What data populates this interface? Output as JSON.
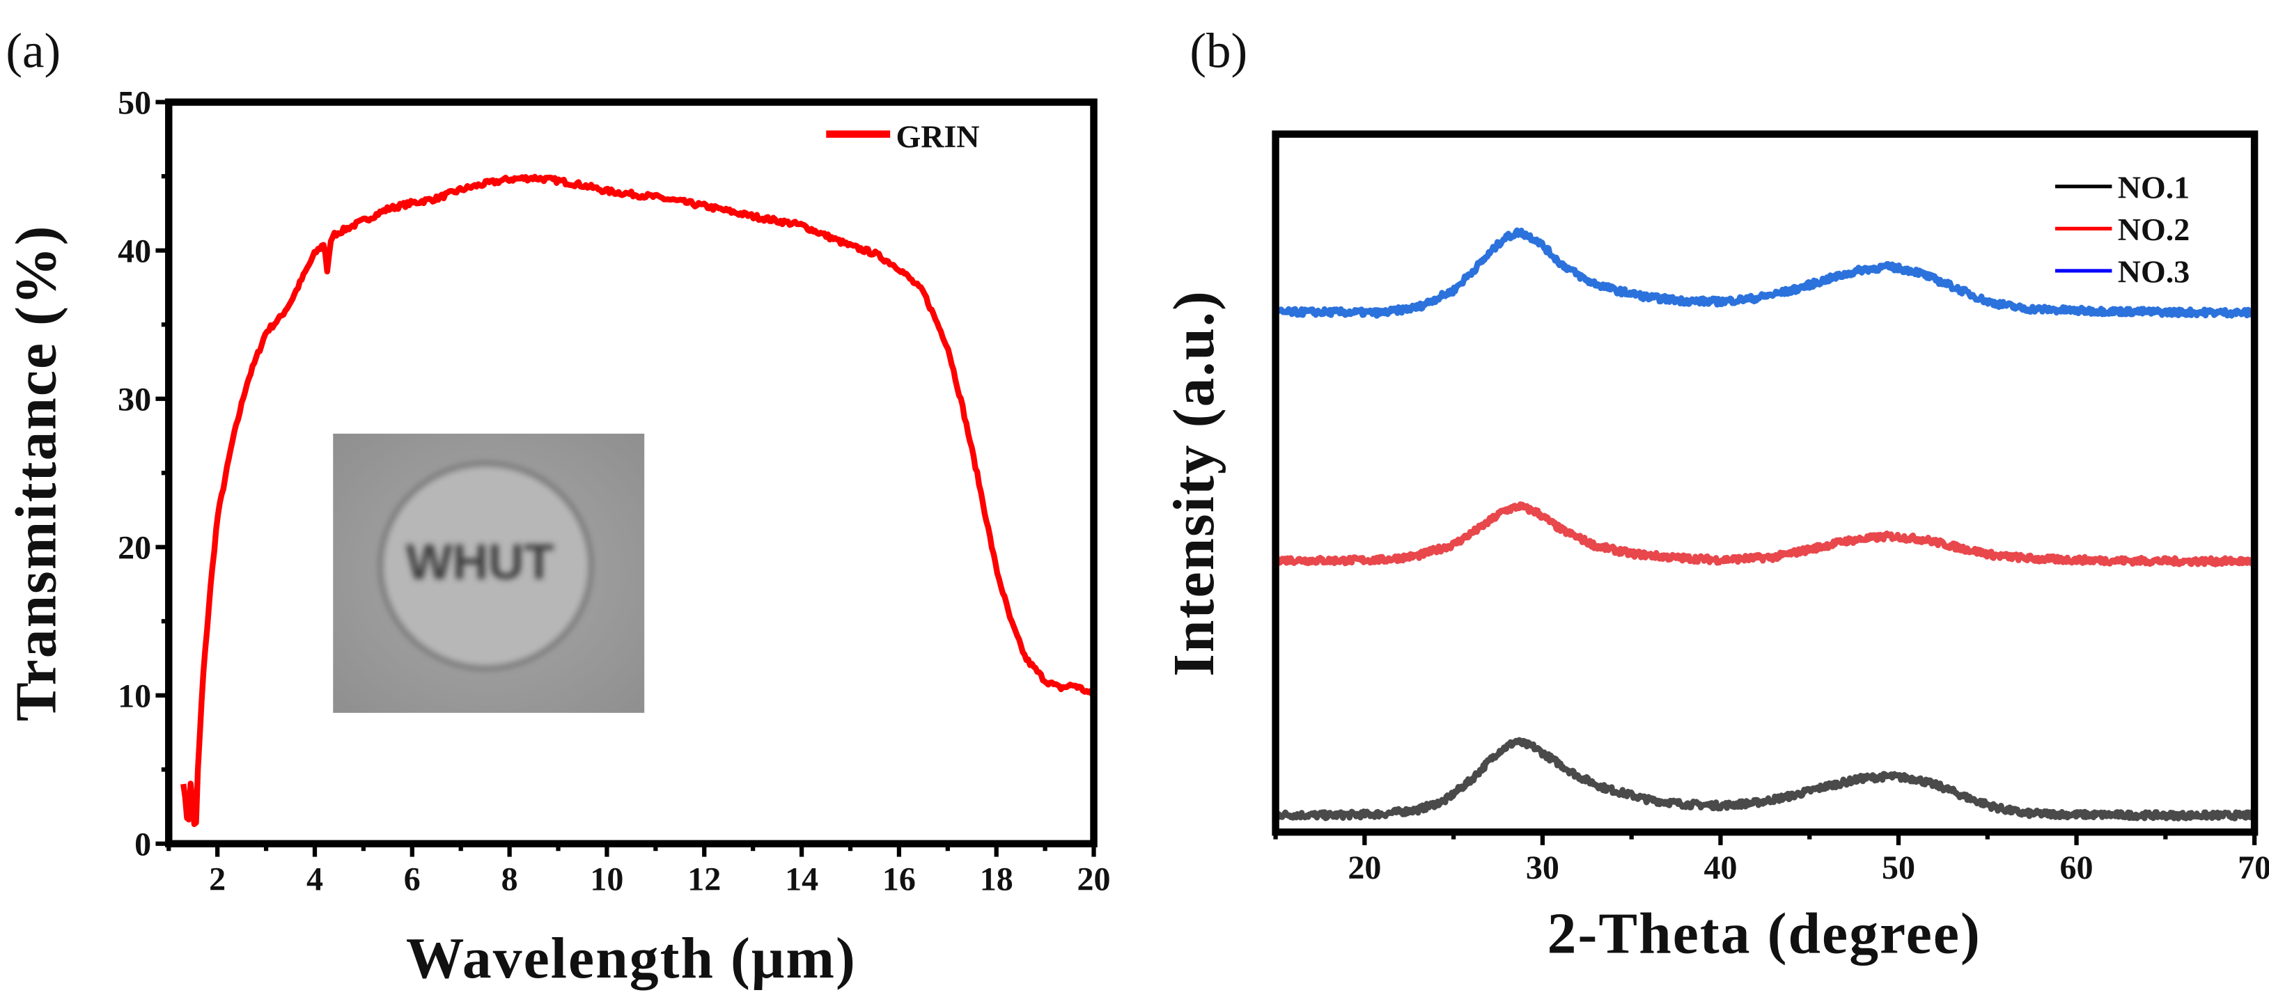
{
  "chart_data": [
    {
      "type": "line",
      "panel_label": "(a)",
      "xlabel": "Wavelength (μm)",
      "ylabel": "Transmittance (%)",
      "xlim": [
        1,
        20
      ],
      "ylim": [
        0,
        50
      ],
      "xticks": [
        2,
        4,
        6,
        8,
        10,
        12,
        14,
        16,
        18,
        20
      ],
      "yticks": [
        0,
        10,
        20,
        30,
        40,
        50
      ],
      "legend_position": "top-right",
      "inset": {
        "description_text": "WHUT"
      },
      "series": [
        {
          "name": "GRIN",
          "color": "#ff0000",
          "x": [
            1.3,
            1.4,
            1.45,
            1.5,
            1.55,
            1.6,
            1.7,
            1.85,
            2.0,
            2.3,
            2.6,
            3.0,
            3.3,
            3.5,
            3.8,
            4.0,
            4.2,
            4.25,
            4.35,
            5.0,
            5.5,
            6.0,
            6.5,
            7.0,
            7.5,
            8.0,
            8.5,
            9.0,
            9.5,
            10.0,
            11.0,
            12.0,
            13.0,
            14.0,
            14.5,
            15.0,
            15.5,
            16.0,
            16.5,
            17.0,
            17.3,
            17.6,
            18.0,
            18.3,
            18.6,
            19.0,
            19.3,
            19.6,
            20.0
          ],
          "y": [
            4.2,
            1.0,
            4.0,
            2.5,
            0.2,
            5.0,
            11.0,
            17.0,
            22.0,
            27.0,
            31.0,
            34.5,
            35.5,
            36.5,
            38.5,
            39.8,
            40.5,
            38.5,
            41.0,
            42.0,
            42.8,
            43.2,
            43.5,
            44.1,
            44.5,
            44.8,
            44.9,
            44.7,
            44.4,
            44.0,
            43.6,
            43.0,
            42.3,
            41.7,
            41.0,
            40.3,
            39.8,
            38.8,
            37.2,
            33.5,
            29.5,
            25.0,
            18.5,
            15.0,
            12.5,
            11.0,
            10.5,
            10.7,
            10.0
          ]
        }
      ]
    },
    {
      "type": "line",
      "panel_label": "(b)",
      "xlabel": "2-Theta (degree)",
      "ylabel": "Intensity (a.u.)",
      "xlim": [
        15,
        70
      ],
      "ylim": [
        0,
        100
      ],
      "xticks": [
        20,
        30,
        40,
        50,
        60,
        70
      ],
      "yticks": [],
      "legend_position": "top-right",
      "series": [
        {
          "name": "NO.1",
          "color": "#4a4a4a",
          "legend_color": "#000000",
          "x": [
            15,
            18,
            21,
            23,
            24.5,
            26,
            27.5,
            28.5,
            29.5,
            30.5,
            32,
            33.5,
            36,
            38,
            40,
            42,
            44,
            46,
            48,
            49.5,
            51,
            52.5,
            54,
            55.5,
            57,
            60,
            65,
            70
          ],
          "y": [
            2.5,
            2.4,
            2.6,
            3.2,
            4.5,
            7.5,
            11.5,
            13.0,
            12.2,
            10.5,
            8.0,
            6.3,
            4.6,
            4.0,
            3.8,
            4.2,
            5.2,
            6.6,
            7.7,
            8.0,
            7.6,
            6.4,
            4.8,
            3.5,
            2.7,
            2.5,
            2.4,
            2.4
          ]
        },
        {
          "name": "NO.2",
          "color": "#e8474c",
          "legend_color": "#ff0000",
          "x": [
            15,
            18,
            21,
            23,
            25,
            26.5,
            27.8,
            28.7,
            29.7,
            31,
            33,
            35,
            37.5,
            40,
            43,
            45,
            47,
            49.5,
            51.5,
            53.5,
            55.5,
            58,
            62,
            66,
            70
          ],
          "y": [
            39.0,
            38.9,
            39.0,
            39.6,
            41.2,
            43.6,
            46.0,
            46.7,
            45.8,
            43.4,
            41.0,
            39.9,
            39.3,
            39.0,
            39.4,
            40.5,
            41.7,
            42.4,
            41.9,
            40.7,
            39.6,
            39.1,
            38.9,
            38.8,
            38.8
          ]
        },
        {
          "name": "NO.3",
          "color": "#2c72dc",
          "legend_color": "#0000ff",
          "x": [
            15,
            18,
            21,
            23,
            25,
            26.5,
            27.8,
            28.7,
            29.7,
            31,
            32.5,
            34,
            36,
            38,
            40,
            42,
            44,
            46,
            48,
            49.5,
            51,
            53,
            55,
            57,
            60,
            65,
            70
          ],
          "y": [
            74.5,
            74.5,
            74.4,
            75.2,
            77.6,
            81.5,
            85.0,
            86.0,
            84.8,
            81.5,
            79.0,
            77.7,
            76.6,
            76.1,
            76.0,
            76.5,
            77.6,
            79.2,
            80.6,
            81.0,
            80.3,
            78.2,
            76.0,
            75.0,
            74.7,
            74.5,
            74.4
          ]
        }
      ]
    }
  ]
}
